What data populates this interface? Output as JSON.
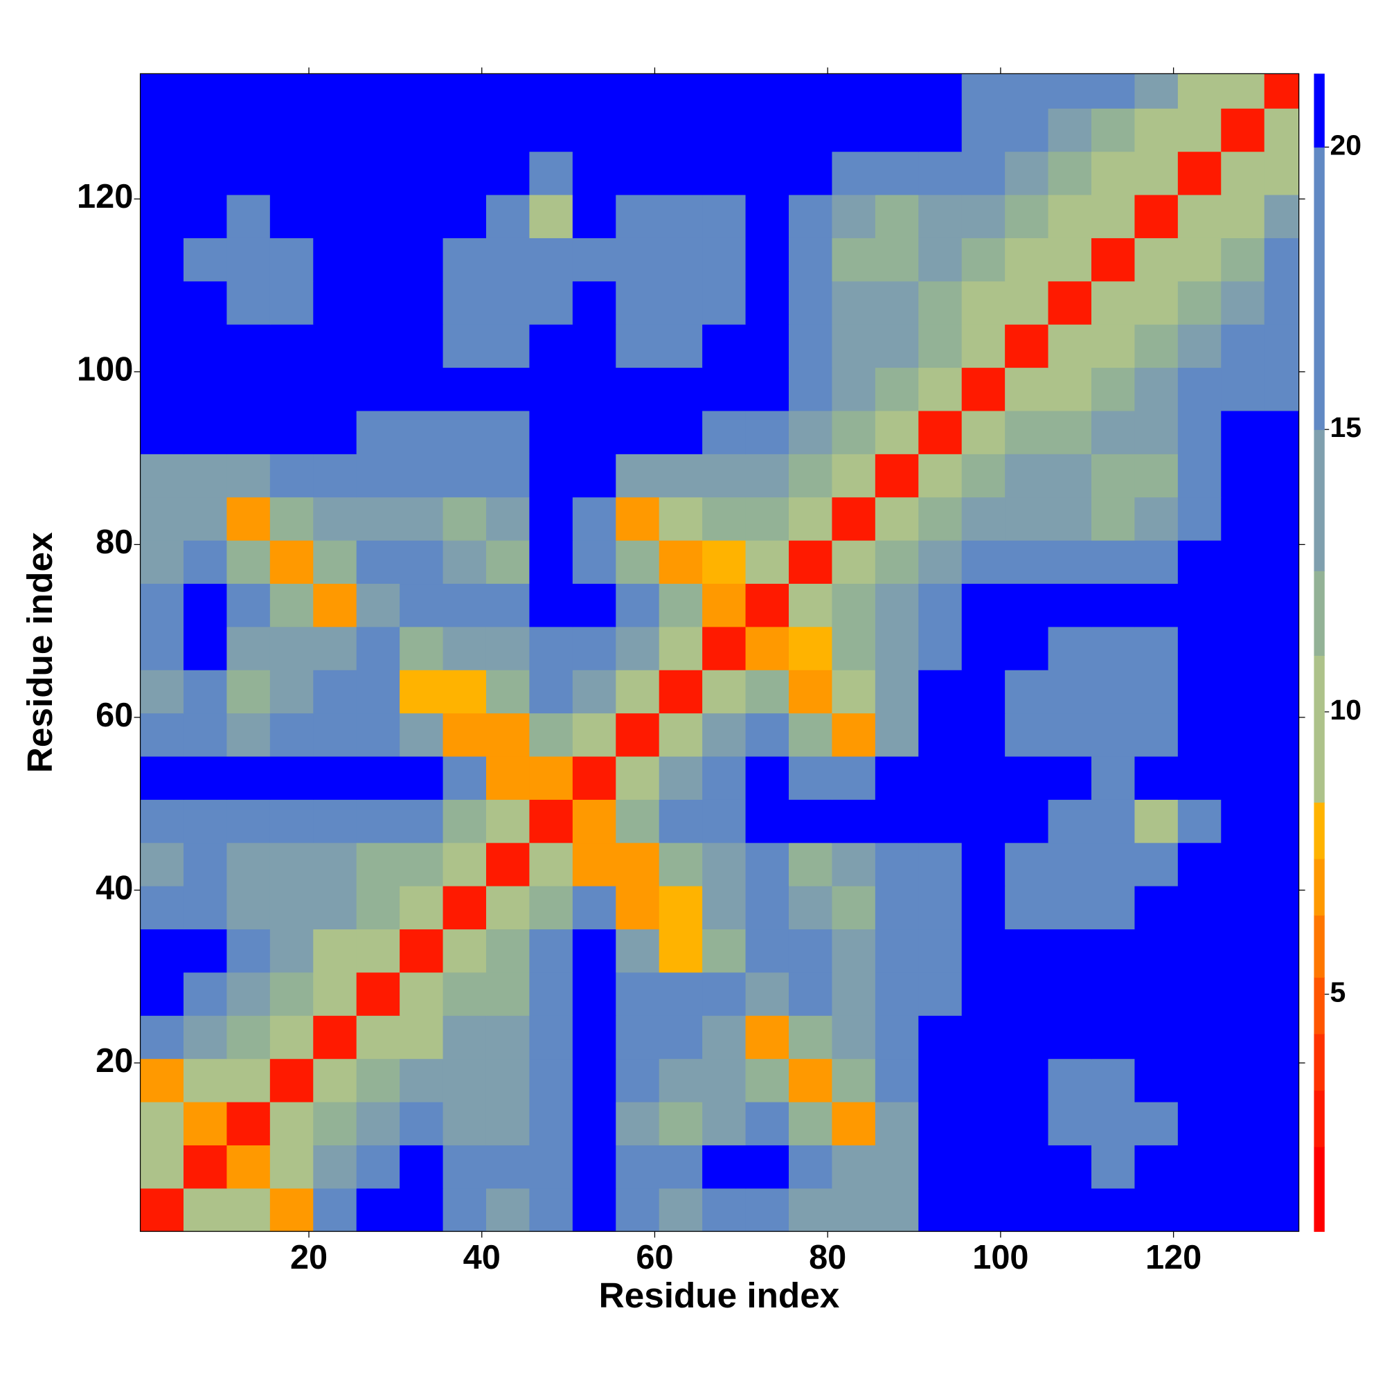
{
  "chart_data": {
    "type": "heatmap",
    "x_label": "Residue index",
    "y_label": "Residue index",
    "x": [
      3,
      8,
      13,
      18,
      23,
      28,
      33,
      38,
      43,
      48,
      53,
      58,
      63,
      68,
      73,
      78,
      83,
      88,
      93,
      98,
      103,
      108,
      113,
      118,
      123,
      128,
      133
    ],
    "y": [
      3,
      8,
      13,
      18,
      23,
      28,
      33,
      38,
      43,
      48,
      53,
      58,
      63,
      68,
      73,
      78,
      83,
      88,
      93,
      98,
      103,
      108,
      113,
      118,
      123,
      128,
      133
    ],
    "z": [
      [
        3,
        9,
        10,
        7,
        17,
        21,
        21,
        17,
        13,
        17,
        21,
        15,
        13,
        15,
        19,
        14,
        14,
        14,
        21,
        21,
        21,
        21,
        21,
        21,
        21,
        21,
        21
      ],
      [
        9,
        3,
        7,
        10,
        14,
        17,
        21,
        19,
        16,
        19,
        21,
        17,
        15,
        20,
        21,
        17,
        14,
        14,
        21,
        21,
        21,
        21,
        18,
        20,
        21,
        21,
        21
      ],
      [
        10,
        7,
        3,
        9,
        11,
        14,
        15,
        14,
        13,
        16,
        21,
        13,
        11,
        13,
        19,
        12,
        7,
        14,
        21,
        21,
        21,
        19,
        18,
        19,
        21,
        21,
        21
      ],
      [
        7,
        10,
        9,
        3,
        9,
        11,
        14,
        14,
        13,
        16,
        21,
        15,
        14,
        13,
        12,
        7,
        12,
        17,
        21,
        21,
        21,
        19,
        18,
        21,
        21,
        21,
        21
      ],
      [
        17,
        14,
        11,
        9,
        3,
        9,
        10,
        14,
        14,
        16,
        21,
        18,
        15,
        14,
        7,
        12,
        13,
        17,
        21,
        21,
        21,
        21,
        21,
        21,
        21,
        21,
        21
      ],
      [
        21,
        17,
        14,
        11,
        9,
        3,
        9,
        12,
        12,
        17,
        21,
        17,
        16,
        15,
        14,
        15,
        14,
        17,
        19,
        21,
        21,
        21,
        21,
        21,
        21,
        21,
        21
      ],
      [
        21,
        21,
        15,
        14,
        10,
        9,
        3,
        9,
        11,
        15,
        21,
        13,
        8,
        12,
        15,
        15,
        14,
        16,
        18,
        21,
        21,
        21,
        21,
        21,
        21,
        21,
        21
      ],
      [
        17,
        19,
        14,
        14,
        14,
        12,
        9,
        3,
        9,
        11,
        16,
        7,
        8,
        13,
        17,
        14,
        11,
        15,
        17,
        21,
        19,
        18,
        17,
        21,
        21,
        21,
        21
      ],
      [
        13,
        16,
        13,
        13,
        14,
        12,
        11,
        9,
        3,
        9,
        7,
        7,
        12,
        14,
        19,
        12,
        14,
        15,
        17,
        21,
        19,
        16,
        17,
        19,
        21,
        21,
        21
      ],
      [
        17,
        19,
        16,
        16,
        16,
        17,
        15,
        11,
        9,
        3,
        7,
        12,
        15,
        16,
        21,
        21,
        21,
        21,
        21,
        21,
        21,
        18,
        17,
        10,
        15,
        21,
        21
      ],
      [
        21,
        21,
        21,
        21,
        21,
        21,
        21,
        16,
        7,
        7,
        3,
        9,
        13,
        16,
        21,
        17,
        19,
        21,
        21,
        21,
        21,
        21,
        19,
        21,
        21,
        21,
        21
      ],
      [
        15,
        17,
        13,
        15,
        18,
        17,
        13,
        7,
        7,
        12,
        9,
        3,
        9,
        13,
        15,
        11,
        7,
        13,
        21,
        21,
        19,
        16,
        16,
        18,
        21,
        21,
        21
      ],
      [
        13,
        15,
        11,
        14,
        15,
        16,
        8,
        8,
        12,
        15,
        13,
        9,
        3,
        9,
        12,
        7,
        9,
        14,
        21,
        21,
        17,
        16,
        15,
        16,
        21,
        21,
        21
      ],
      [
        15,
        20,
        13,
        13,
        14,
        15,
        12,
        13,
        14,
        16,
        16,
        13,
        9,
        3,
        7,
        8,
        12,
        13,
        18,
        21,
        21,
        17,
        17,
        18,
        21,
        21,
        21
      ],
      [
        19,
        21,
        19,
        12,
        7,
        14,
        15,
        17,
        19,
        21,
        21,
        15,
        12,
        7,
        3,
        9,
        12,
        14,
        17,
        21,
        21,
        21,
        21,
        21,
        21,
        21,
        21
      ],
      [
        14,
        17,
        12,
        7,
        12,
        15,
        15,
        14,
        12,
        21,
        17,
        11,
        7,
        8,
        9,
        3,
        9,
        12,
        14,
        17,
        19,
        17,
        16,
        17,
        21,
        21,
        21
      ],
      [
        14,
        14,
        7,
        12,
        13,
        14,
        14,
        11,
        14,
        21,
        19,
        7,
        9,
        12,
        12,
        9,
        3,
        9,
        12,
        14,
        13,
        14,
        12,
        13,
        15,
        21,
        21
      ],
      [
        14,
        14,
        14,
        17,
        17,
        17,
        16,
        15,
        15,
        21,
        21,
        13,
        14,
        13,
        14,
        12,
        9,
        3,
        9,
        11,
        13,
        13,
        11,
        11,
        16,
        21,
        21
      ],
      [
        21,
        21,
        21,
        21,
        21,
        19,
        18,
        17,
        17,
        21,
        21,
        21,
        21,
        18,
        17,
        14,
        12,
        9,
        3,
        9,
        11,
        11,
        13,
        13,
        17,
        21,
        21
      ],
      [
        21,
        21,
        21,
        21,
        21,
        21,
        21,
        21,
        21,
        21,
        21,
        21,
        21,
        21,
        21,
        17,
        14,
        11,
        9,
        3,
        9,
        10,
        12,
        14,
        16,
        16,
        19
      ],
      [
        21,
        21,
        21,
        21,
        21,
        21,
        21,
        19,
        19,
        21,
        21,
        19,
        17,
        21,
        21,
        19,
        13,
        13,
        11,
        9,
        3,
        9,
        10,
        11,
        13,
        15,
        15
      ],
      [
        21,
        21,
        19,
        19,
        21,
        21,
        21,
        18,
        16,
        18,
        21,
        16,
        16,
        17,
        21,
        17,
        14,
        13,
        11,
        10,
        9,
        3,
        9,
        10,
        12,
        14,
        16
      ],
      [
        21,
        18,
        18,
        18,
        21,
        21,
        21,
        17,
        17,
        17,
        19,
        16,
        15,
        17,
        21,
        16,
        12,
        11,
        13,
        12,
        10,
        9,
        3,
        9,
        10,
        12,
        15
      ],
      [
        21,
        20,
        19,
        21,
        21,
        21,
        21,
        21,
        19,
        10,
        21,
        18,
        16,
        18,
        21,
        17,
        13,
        11,
        13,
        14,
        11,
        10,
        9,
        3,
        9,
        10,
        14
      ],
      [
        21,
        21,
        21,
        21,
        21,
        21,
        21,
        21,
        21,
        15,
        21,
        21,
        21,
        21,
        21,
        21,
        15,
        16,
        17,
        16,
        13,
        12,
        10,
        9,
        3,
        9,
        10
      ],
      [
        21,
        21,
        21,
        21,
        21,
        21,
        21,
        21,
        21,
        21,
        21,
        21,
        21,
        21,
        21,
        21,
        21,
        21,
        21,
        16,
        15,
        14,
        12,
        10,
        9,
        3,
        9
      ],
      [
        21,
        21,
        21,
        21,
        21,
        21,
        21,
        21,
        21,
        21,
        21,
        21,
        21,
        21,
        21,
        21,
        21,
        21,
        21,
        19,
        15,
        16,
        15,
        14,
        10,
        9,
        3
      ]
    ],
    "xlim": [
      0.5,
      134.5
    ],
    "ylim": [
      0.5,
      134.5
    ],
    "xticks": [
      20,
      40,
      60,
      80,
      100,
      120
    ],
    "yticks": [
      20,
      40,
      60,
      80,
      100,
      120
    ],
    "zlim": [
      0.8,
      21.3
    ],
    "colorbar_ticks": [
      5,
      10,
      15,
      20
    ],
    "colorscale": [
      {
        "value": 0.8,
        "color": "#ff0000"
      },
      {
        "value": 2.3,
        "color": "#ff1a00"
      },
      {
        "value": 3.3,
        "color": "#ff3300"
      },
      {
        "value": 4.3,
        "color": "#ff5500"
      },
      {
        "value": 5.3,
        "color": "#ff7700"
      },
      {
        "value": 6.4,
        "color": "#ff9900"
      },
      {
        "value": 7.4,
        "color": "#ffb300"
      },
      {
        "value": 8.4,
        "color": "#adc28a"
      },
      {
        "value": 11,
        "color": "#93b296"
      },
      {
        "value": 12.5,
        "color": "#7f9fae"
      },
      {
        "value": 15,
        "color": "#6189c4"
      },
      {
        "value": 20,
        "color": "#0000ff"
      }
    ]
  }
}
